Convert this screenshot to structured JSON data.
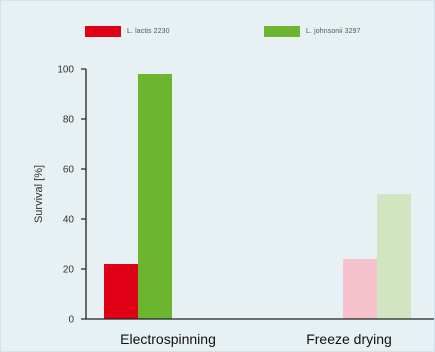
{
  "chart_data": {
    "type": "bar",
    "categories": [
      "Electrospinning",
      "Freeze drying"
    ],
    "series": [
      {
        "name": "L. lactis 2230",
        "values": [
          22,
          24
        ],
        "colors": [
          "#e00016",
          "#f6c2cb"
        ]
      },
      {
        "name": "L. johnsonii 3297",
        "values": [
          98,
          50
        ],
        "colors": [
          "#6cb52e",
          "#d1e6c0"
        ]
      }
    ],
    "title": "",
    "xlabel": "",
    "ylabel": "Survival [%]",
    "ylim": [
      0,
      100
    ],
    "yticks": [
      0,
      20,
      40,
      60,
      80,
      100
    ],
    "grid": false,
    "legend": "top"
  },
  "legend": {
    "items": [
      {
        "label": "L. lactis 2230",
        "color": "#e00016"
      },
      {
        "label": "L. johnsonii 3297",
        "color": "#6cb52e"
      }
    ]
  },
  "colors": {
    "background": "#e7f1f3",
    "axis": "#222222"
  }
}
